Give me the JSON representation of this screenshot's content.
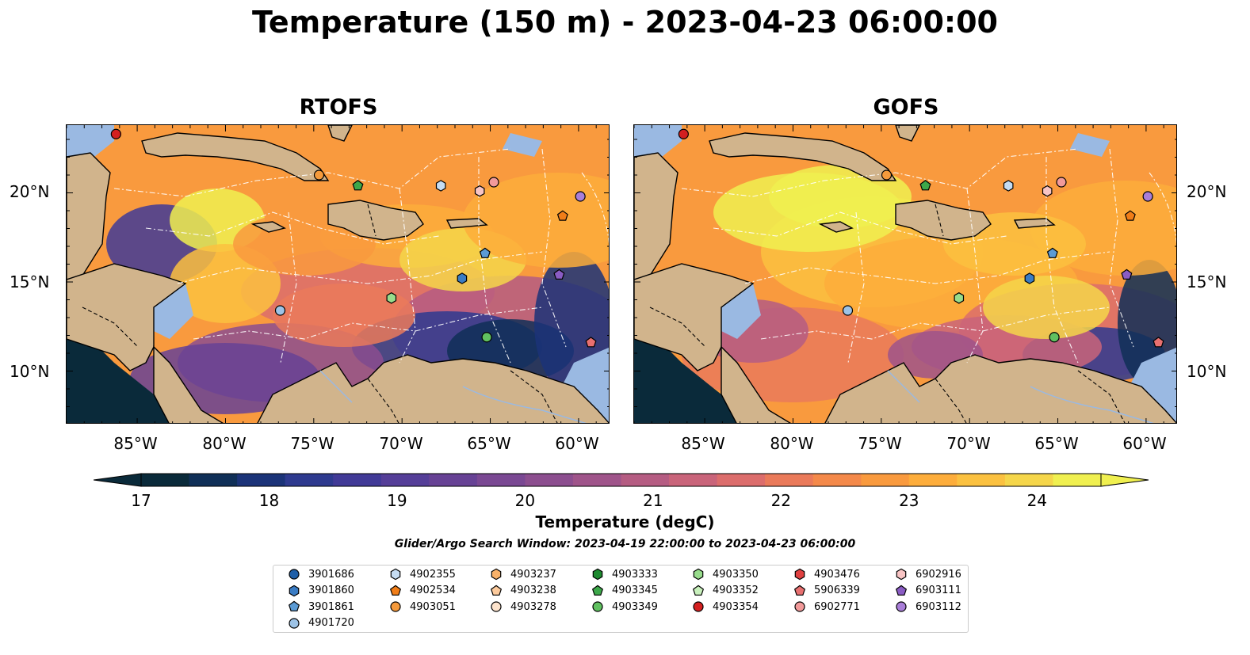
{
  "title": "Temperature (150 m) - 2023-04-23 06:00:00",
  "panels": [
    {
      "name": "RTOFS"
    },
    {
      "name": "GOFS"
    }
  ],
  "lat_labels": [
    "20°N",
    "15°N",
    "10°N"
  ],
  "lon_labels": [
    "85°W",
    "80°W",
    "75°W",
    "70°W",
    "65°W",
    "60°W"
  ],
  "colorbar": {
    "label": "Temperature (degC)",
    "ticks": [
      "17",
      "18",
      "19",
      "20",
      "21",
      "22",
      "23",
      "24"
    ],
    "min": 17,
    "max": 24.5,
    "step": 0.5,
    "colors": [
      "#0a2a3a",
      "#0f2f57",
      "#1b3378",
      "#2e3a8f",
      "#413a97",
      "#553e98",
      "#674295",
      "#7a4893",
      "#8c4e8f",
      "#9f548a",
      "#b55c82",
      "#c9647a",
      "#dc6d6c",
      "#ea7a5a",
      "#f4894a",
      "#f99a3e",
      "#fdad3b",
      "#fbc140",
      "#f5d64a",
      "#f0f050"
    ]
  },
  "search_window": "Glider/Argo Search Window: 2023-04-19 22:00:00 to 2023-04-23 06:00:00",
  "legend": [
    {
      "id": "3901686",
      "marker": "circle",
      "color": "#1f5fa8"
    },
    {
      "id": "3901860",
      "marker": "hexagon",
      "color": "#3a7cc4"
    },
    {
      "id": "3901861",
      "marker": "pentagon",
      "color": "#5b9bd5"
    },
    {
      "id": "4901720",
      "marker": "circle",
      "color": "#9dc3e6"
    },
    {
      "id": "4902355",
      "marker": "hexagon",
      "color": "#c5dcf2"
    },
    {
      "id": "4902534",
      "marker": "pentagon",
      "color": "#f07d18"
    },
    {
      "id": "4903051",
      "marker": "circle",
      "color": "#f59a3c"
    },
    {
      "id": "4903237",
      "marker": "hexagon",
      "color": "#f9b26a"
    },
    {
      "id": "4903238",
      "marker": "pentagon",
      "color": "#fcca9c"
    },
    {
      "id": "4903278",
      "marker": "circle",
      "color": "#fde3cc"
    },
    {
      "id": "4903333",
      "marker": "hexagon",
      "color": "#1e8a30"
    },
    {
      "id": "4903345",
      "marker": "pentagon",
      "color": "#3da84a"
    },
    {
      "id": "4903349",
      "marker": "circle",
      "color": "#60c060"
    },
    {
      "id": "4903350",
      "marker": "hexagon",
      "color": "#98dc8c"
    },
    {
      "id": "4903352",
      "marker": "pentagon",
      "color": "#c8f0bc"
    },
    {
      "id": "4903354",
      "marker": "circle",
      "color": "#d42020"
    },
    {
      "id": "4903476",
      "marker": "hexagon",
      "color": "#e04040"
    },
    {
      "id": "5906339",
      "marker": "pentagon",
      "color": "#e87070"
    },
    {
      "id": "6902771",
      "marker": "circle",
      "color": "#f29a9a"
    },
    {
      "id": "6902916",
      "marker": "hexagon",
      "color": "#f8c4c4"
    },
    {
      "id": "6903111",
      "marker": "pentagon",
      "color": "#8a5cc4"
    },
    {
      "id": "6903112",
      "marker": "circle",
      "color": "#a97ed8"
    }
  ],
  "floats": [
    {
      "id": "4903354",
      "lon": -86.2,
      "lat": 23.3
    },
    {
      "id": "4903051",
      "lon": -74.7,
      "lat": 21.0
    },
    {
      "id": "4903345",
      "lon": -72.5,
      "lat": 20.4
    },
    {
      "id": "4902355",
      "lon": -67.8,
      "lat": 20.4
    },
    {
      "id": "6902916",
      "lon": -65.6,
      "lat": 20.1
    },
    {
      "id": "6902771",
      "lon": -64.8,
      "lat": 20.6
    },
    {
      "id": "6903112",
      "lon": -59.9,
      "lat": 19.8
    },
    {
      "id": "4902534",
      "lon": -60.9,
      "lat": 18.7
    },
    {
      "id": "3901861",
      "lon": -65.3,
      "lat": 16.6
    },
    {
      "id": "3901860",
      "lon": -66.6,
      "lat": 15.2
    },
    {
      "id": "6903111",
      "lon": -61.1,
      "lat": 15.4
    },
    {
      "id": "4903350",
      "lon": -70.6,
      "lat": 14.1
    },
    {
      "id": "4901720",
      "lon": -76.9,
      "lat": 13.4
    },
    {
      "id": "4903349",
      "lon": -65.2,
      "lat": 11.9
    },
    {
      "id": "5906339",
      "lon": -59.3,
      "lat": 11.6
    }
  ]
}
